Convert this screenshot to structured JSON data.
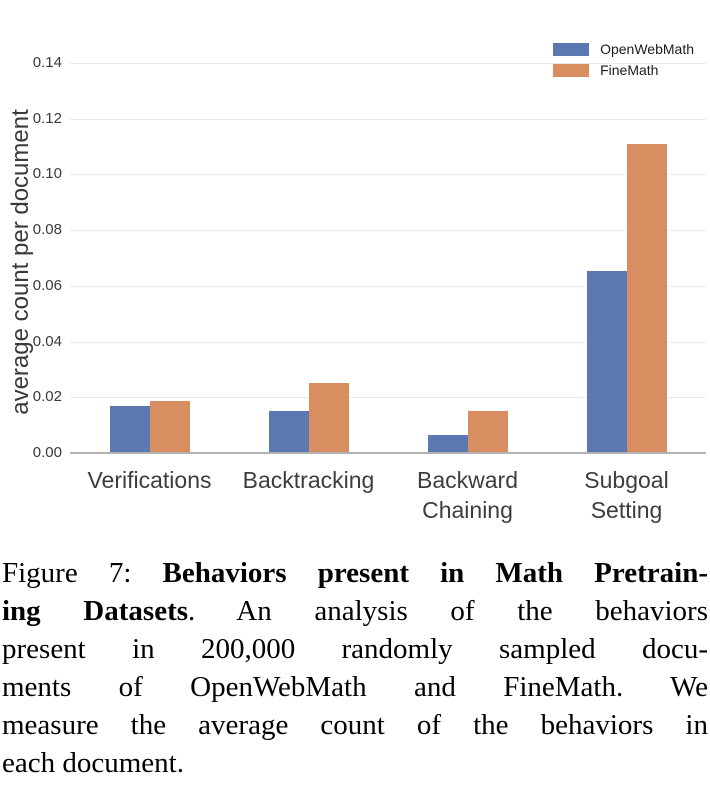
{
  "chart_data": {
    "type": "bar",
    "title": "",
    "categories": [
      "Verifications",
      "Backtracking",
      "Backward\nChaining",
      "Subgoal\nSetting"
    ],
    "series": [
      {
        "name": "OpenWebMath",
        "color": "#5b79b0",
        "values": [
          0.017,
          0.015,
          0.0065,
          0.0655
        ]
      },
      {
        "name": "FineMath",
        "color": "#d98e61",
        "values": [
          0.0185,
          0.025,
          0.015,
          0.111
        ]
      }
    ],
    "xlabel": "",
    "ylabel": "average count per document",
    "ylim": [
      0,
      0.14
    ],
    "yticks": [
      "0.00",
      "0.02",
      "0.04",
      "0.06",
      "0.08",
      "0.10",
      "0.12",
      "0.14"
    ],
    "grid": true,
    "legend_position": "upper right"
  },
  "caption": {
    "lines": [
      {
        "justify": true,
        "parts": [
          {
            "t": "Figure 7: ",
            "b": false
          },
          {
            "t": "Behaviors present in Math Pretrain-",
            "b": true
          }
        ]
      },
      {
        "justify": true,
        "parts": [
          {
            "t": "ing Datasets",
            "b": true
          },
          {
            "t": ". An analysis of the behaviors",
            "b": false
          }
        ]
      },
      {
        "justify": true,
        "parts": [
          {
            "t": "present in 200,000 randomly sampled docu-",
            "b": false
          }
        ]
      },
      {
        "justify": true,
        "parts": [
          {
            "t": "ments of OpenWebMath and FineMath. We",
            "b": false
          }
        ]
      },
      {
        "justify": true,
        "parts": [
          {
            "t": "measure the average count of the behaviors in",
            "b": false
          }
        ]
      },
      {
        "justify": false,
        "parts": [
          {
            "t": "each document.",
            "b": false
          }
        ]
      }
    ]
  }
}
